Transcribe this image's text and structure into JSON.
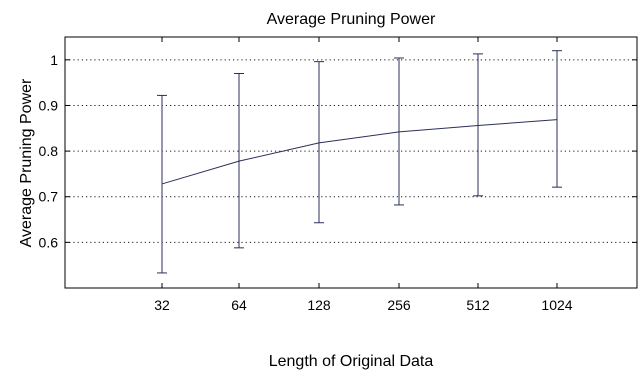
{
  "chart_data": {
    "type": "line",
    "title": "Average Pruning Power",
    "xlabel": "Length of Original Data",
    "ylabel": "Average Pruning Power",
    "categories": [
      "32",
      "64",
      "128",
      "256",
      "512",
      "1024"
    ],
    "series": [
      {
        "values": [
          0.728,
          0.778,
          0.818,
          0.842,
          0.856,
          0.869
        ],
        "error_low": [
          0.533,
          0.588,
          0.643,
          0.682,
          0.702,
          0.721
        ],
        "error_high": [
          0.922,
          0.97,
          0.996,
          1.004,
          1.013,
          1.02
        ]
      }
    ],
    "yticks": [
      0.6,
      0.7,
      0.8,
      0.9,
      1
    ],
    "ytick_labels": [
      "0.6",
      "0.7",
      "0.8",
      "0.9",
      "1"
    ],
    "ylim": [
      0.5,
      1.05
    ],
    "grid": true,
    "legend": "none",
    "colors": {
      "series": "#2b2f5a",
      "grid": "#000000",
      "frame": "#000000"
    }
  }
}
